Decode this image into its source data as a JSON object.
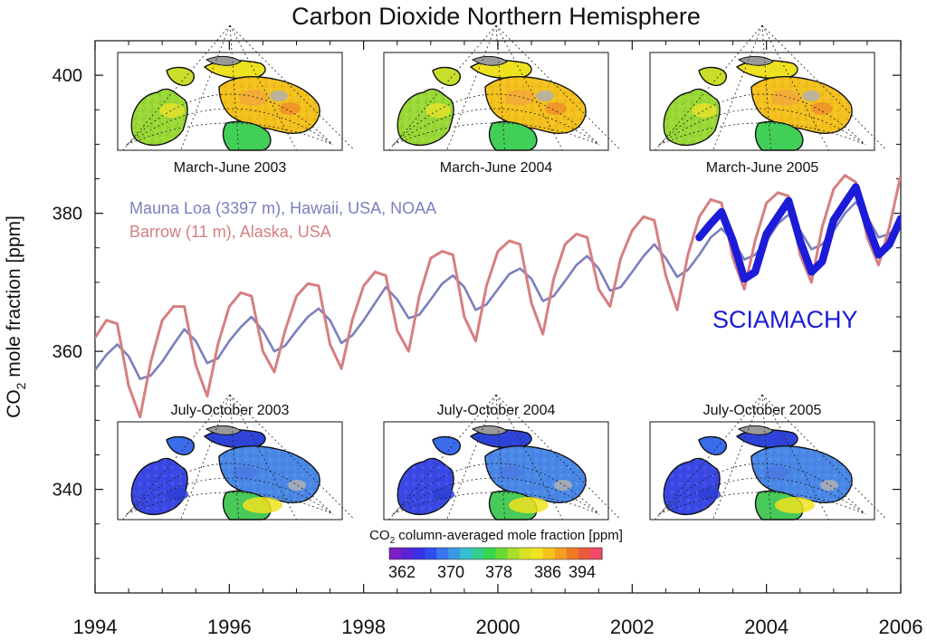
{
  "chart_data": {
    "type": "line",
    "title": "Carbon Dioxide Northern Hemisphere",
    "ylabel_main": "CO",
    "ylabel_sub": "2",
    "ylabel_rest": " mole fraction [ppm]",
    "xlim": [
      1994,
      2006
    ],
    "ylim": [
      325,
      405
    ],
    "x_ticks": [
      "1994",
      "1996",
      "1998",
      "2000",
      "2002",
      "2004",
      "2006"
    ],
    "y_ticks": [
      "340",
      "360",
      "380",
      "400"
    ],
    "grid": false,
    "series": [
      {
        "name": "Mauna Loa (3397 m), Hawaii, USA, NOAA",
        "color": "#7b7fbe",
        "x": [
          1994.0,
          1994.17,
          1994.33,
          1994.5,
          1994.67,
          1994.83,
          1995.0,
          1995.17,
          1995.33,
          1995.5,
          1995.67,
          1995.83,
          1996.0,
          1996.17,
          1996.33,
          1996.5,
          1996.67,
          1996.83,
          1997.0,
          1997.17,
          1997.33,
          1997.5,
          1997.67,
          1997.83,
          1998.0,
          1998.17,
          1998.33,
          1998.5,
          1998.67,
          1998.83,
          1999.0,
          1999.17,
          1999.33,
          1999.5,
          1999.67,
          1999.83,
          2000.0,
          2000.17,
          2000.33,
          2000.5,
          2000.67,
          2000.83,
          2001.0,
          2001.17,
          2001.33,
          2001.5,
          2001.67,
          2001.83,
          2002.0,
          2002.17,
          2002.33,
          2002.5,
          2002.67,
          2002.83,
          2003.0,
          2003.17,
          2003.33,
          2003.5,
          2003.67,
          2003.83,
          2004.0,
          2004.17,
          2004.33,
          2004.5,
          2004.67,
          2004.83,
          2005.0,
          2005.17,
          2005.33,
          2005.5,
          2005.67,
          2005.83,
          2006.0
        ],
        "values": [
          357.3,
          359.5,
          361.0,
          359.3,
          356.0,
          356.5,
          358.5,
          361.0,
          363.2,
          361.5,
          358.3,
          359.0,
          361.5,
          363.5,
          365.0,
          363.0,
          360.0,
          360.8,
          363.0,
          365.0,
          366.2,
          364.5,
          361.2,
          362.3,
          364.5,
          367.0,
          369.3,
          367.5,
          364.8,
          365.3,
          367.5,
          369.8,
          371.0,
          369.3,
          366.0,
          366.8,
          369.0,
          371.2,
          372.0,
          370.5,
          367.3,
          368.0,
          370.2,
          372.5,
          373.8,
          372.0,
          368.8,
          369.3,
          371.5,
          373.8,
          375.5,
          373.5,
          370.8,
          371.8,
          374.0,
          376.5,
          377.8,
          376.0,
          373.3,
          374.0,
          376.0,
          378.5,
          379.8,
          377.5,
          374.8,
          375.5,
          377.5,
          380.0,
          381.6,
          379.5,
          376.5,
          377.0,
          378.5
        ]
      },
      {
        "name": "Barrow (11 m), Alaska, USA",
        "color": "#d67f80",
        "x": [
          1994.0,
          1994.17,
          1994.33,
          1994.5,
          1994.67,
          1994.83,
          1995.0,
          1995.17,
          1995.33,
          1995.5,
          1995.67,
          1995.83,
          1996.0,
          1996.17,
          1996.33,
          1996.5,
          1996.67,
          1996.83,
          1997.0,
          1997.17,
          1997.33,
          1997.5,
          1997.67,
          1997.83,
          1998.0,
          1998.17,
          1998.33,
          1998.5,
          1998.67,
          1998.83,
          1999.0,
          1999.17,
          1999.33,
          1999.5,
          1999.67,
          1999.83,
          2000.0,
          2000.17,
          2000.33,
          2000.5,
          2000.67,
          2000.83,
          2001.0,
          2001.17,
          2001.33,
          2001.5,
          2001.67,
          2001.83,
          2002.0,
          2002.17,
          2002.33,
          2002.5,
          2002.67,
          2002.83,
          2003.0,
          2003.17,
          2003.33,
          2003.5,
          2003.67,
          2003.83,
          2004.0,
          2004.17,
          2004.33,
          2004.5,
          2004.67,
          2004.83,
          2005.0,
          2005.17,
          2005.33,
          2005.5,
          2005.67,
          2005.83,
          2006.0
        ],
        "values": [
          362.0,
          364.5,
          364.0,
          355.0,
          350.5,
          358.5,
          364.5,
          366.5,
          366.5,
          358.0,
          353.5,
          361.0,
          366.5,
          368.5,
          368.0,
          360.0,
          357.0,
          363.0,
          368.0,
          369.8,
          369.5,
          361.0,
          357.5,
          364.5,
          369.5,
          371.5,
          371.0,
          363.0,
          360.0,
          368.0,
          373.5,
          374.5,
          374.0,
          365.0,
          361.5,
          369.5,
          374.5,
          376.0,
          375.5,
          367.0,
          362.5,
          370.5,
          375.5,
          377.0,
          376.5,
          369.0,
          366.5,
          373.5,
          377.5,
          379.5,
          379.0,
          371.0,
          366.0,
          374.0,
          379.5,
          382.0,
          381.5,
          373.5,
          369.0,
          376.0,
          381.5,
          383.0,
          382.5,
          374.0,
          370.0,
          378.0,
          383.5,
          385.5,
          384.5,
          376.5,
          372.5,
          378.0,
          385.5
        ]
      },
      {
        "name": "SCIAMACHY",
        "color": "#1b1bd8",
        "x": [
          2003.0,
          2003.17,
          2003.33,
          2003.5,
          2003.67,
          2003.83,
          2004.0,
          2004.17,
          2004.33,
          2004.5,
          2004.67,
          2004.83,
          2005.0,
          2005.17,
          2005.33,
          2005.5,
          2005.67,
          2005.83,
          2006.0
        ],
        "values": [
          376.5,
          378.5,
          380.2,
          376.0,
          370.5,
          371.5,
          377.0,
          379.5,
          381.8,
          376.0,
          371.5,
          373.0,
          379.0,
          381.5,
          383.8,
          378.5,
          374.0,
          375.5,
          379.2
        ]
      }
    ],
    "map_panels": [
      {
        "label": "March-June 2003",
        "season": "spring"
      },
      {
        "label": "March-June 2004",
        "season": "spring"
      },
      {
        "label": "March-June 2005",
        "season": "spring"
      },
      {
        "label": "July-October 2003",
        "season": "summer"
      },
      {
        "label": "July-October 2004",
        "season": "summer"
      },
      {
        "label": "July-October 2005",
        "season": "summer"
      }
    ],
    "colorbar": {
      "label_main": "CO",
      "label_sub": "2",
      "label_rest": " column-averaged mole fraction [ppm]",
      "ticks": [
        "362",
        "370",
        "378",
        "386",
        "394"
      ],
      "colors": [
        "#7a1fc4",
        "#5a23d6",
        "#3a2fe6",
        "#2e4ef0",
        "#3a74ee",
        "#3b9ae4",
        "#36bfcf",
        "#33cf8c",
        "#35d64a",
        "#6ad831",
        "#a6de2a",
        "#d6e324",
        "#f2e31f",
        "#f6c31e",
        "#f5a01f",
        "#f07a24",
        "#ec5a3a",
        "#ef4a6a"
      ]
    }
  }
}
